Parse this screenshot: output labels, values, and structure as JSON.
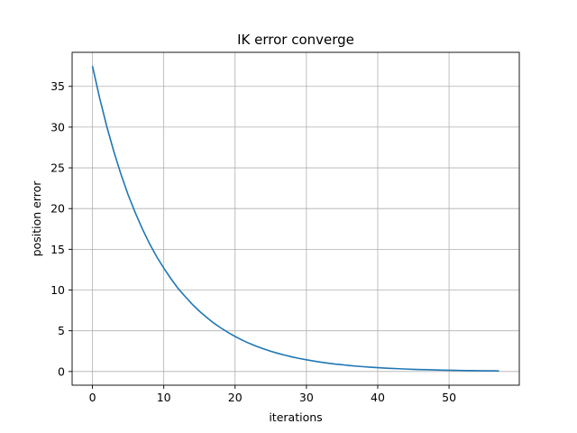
{
  "chart_data": {
    "type": "line",
    "title": "IK error converge",
    "xlabel": "iterations",
    "ylabel": "position error",
    "xlim": [
      -2.85,
      59.85
    ],
    "ylim": [
      -1.68,
      39.18
    ],
    "xticks": [
      0,
      10,
      20,
      30,
      40,
      50
    ],
    "yticks": [
      0,
      5,
      10,
      15,
      20,
      25,
      30,
      35
    ],
    "grid": true,
    "line_color": "#1f77b4",
    "series": [
      {
        "x": [
          0,
          1,
          2,
          3,
          4,
          5,
          6,
          7,
          8,
          9,
          10,
          11,
          12,
          13,
          14,
          15,
          16,
          17,
          18,
          19,
          20,
          21,
          22,
          23,
          24,
          25,
          26,
          27,
          28,
          29,
          30,
          31,
          32,
          33,
          34,
          35,
          36,
          37,
          38,
          39,
          40,
          41,
          42,
          43,
          44,
          45,
          46,
          47,
          48,
          49,
          50,
          51,
          52,
          53,
          54,
          55,
          56,
          57
        ],
        "y": [
          37.5,
          33.6,
          30.1,
          27.0,
          24.2,
          21.7,
          19.5,
          17.5,
          15.7,
          14.1,
          12.7,
          11.4,
          10.2,
          9.2,
          8.25,
          7.4,
          6.65,
          5.95,
          5.35,
          4.8,
          4.3,
          3.85,
          3.45,
          3.1,
          2.78,
          2.49,
          2.23,
          2.0,
          1.79,
          1.6,
          1.44,
          1.29,
          1.15,
          1.03,
          0.92,
          0.83,
          0.74,
          0.66,
          0.59,
          0.53,
          0.47,
          0.42,
          0.38,
          0.34,
          0.3,
          0.27,
          0.24,
          0.22,
          0.19,
          0.17,
          0.155,
          0.14,
          0.12,
          0.11,
          0.1,
          0.09,
          0.08,
          0.07
        ]
      }
    ]
  }
}
